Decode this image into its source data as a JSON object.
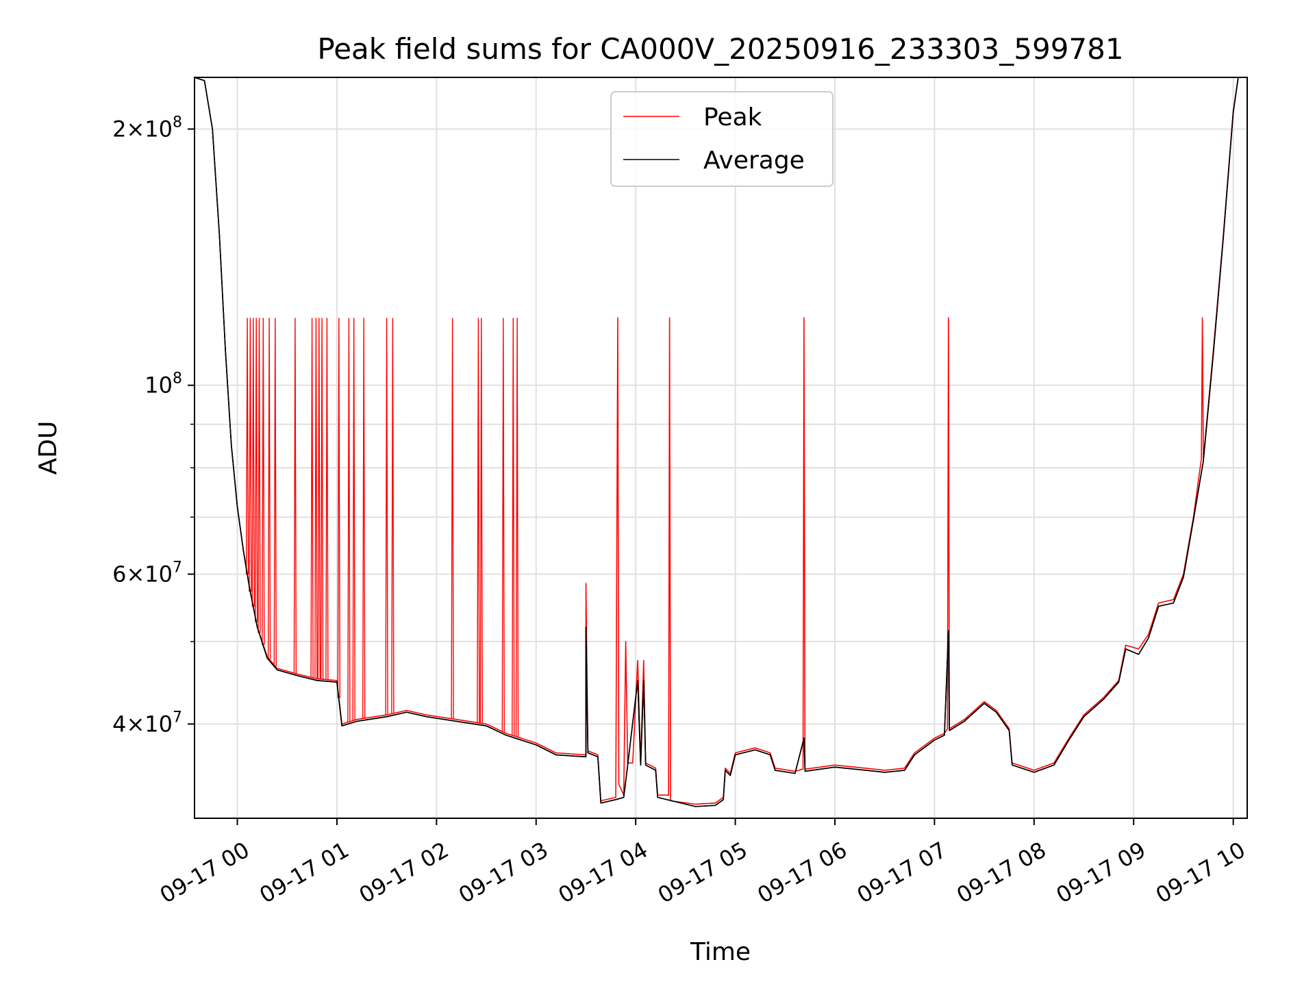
{
  "chart_data": {
    "type": "line",
    "title": "Peak field sums for CA000V_20250916_233303_599781",
    "xlabel": "Time",
    "ylabel": "ADU",
    "y_scale": "log",
    "ylim": [
      31000000,
      230000000
    ],
    "x_unit": "hours since 09-17 00:00",
    "xlim": [
      -0.43,
      10.14
    ],
    "grid": true,
    "legend_position": "upper center",
    "x_ticks": [
      {
        "value": 0,
        "label": "09-17 00"
      },
      {
        "value": 1,
        "label": "09-17 01"
      },
      {
        "value": 2,
        "label": "09-17 02"
      },
      {
        "value": 3,
        "label": "09-17 03"
      },
      {
        "value": 4,
        "label": "09-17 04"
      },
      {
        "value": 5,
        "label": "09-17 05"
      },
      {
        "value": 6,
        "label": "09-17 06"
      },
      {
        "value": 7,
        "label": "09-17 07"
      },
      {
        "value": 8,
        "label": "09-17 08"
      },
      {
        "value": 9,
        "label": "09-17 09"
      },
      {
        "value": 10,
        "label": "09-17 10"
      }
    ],
    "y_major_ticks": [
      {
        "value": 40000000,
        "base": "4",
        "sup": "7"
      },
      {
        "value": 60000000,
        "base": "6",
        "sup": "7"
      },
      {
        "value": 100000000,
        "base": "10",
        "sup": "8"
      },
      {
        "value": 200000000,
        "base": "2",
        "sup": "8"
      }
    ],
    "y_minor_ticks": [
      50000000,
      70000000,
      80000000,
      90000000
    ],
    "series": [
      {
        "name": "Peak",
        "color": "#ff0000",
        "points": [
          [
            -0.43,
            230000000
          ],
          [
            -0.33,
            228000000
          ],
          [
            -0.25,
            200000000
          ],
          [
            -0.18,
            150000000
          ],
          [
            -0.12,
            110000000
          ],
          [
            -0.06,
            85000000
          ],
          [
            0.0,
            72000000
          ],
          [
            0.06,
            64000000
          ],
          [
            0.12,
            58000000
          ],
          [
            0.2,
            52000000
          ],
          [
            0.3,
            48000000
          ],
          [
            0.4,
            46500000
          ],
          [
            0.6,
            45800000
          ],
          [
            0.8,
            45200000
          ],
          [
            1.0,
            45000000
          ],
          [
            1.05,
            40000000
          ],
          [
            1.2,
            40500000
          ],
          [
            1.5,
            41000000
          ],
          [
            1.7,
            41500000
          ],
          [
            1.9,
            41000000
          ],
          [
            2.2,
            40500000
          ],
          [
            2.5,
            40000000
          ],
          [
            2.7,
            39000000
          ],
          [
            3.0,
            38000000
          ],
          [
            3.2,
            37000000
          ],
          [
            3.5,
            36800000
          ],
          [
            3.5,
            58500000
          ],
          [
            3.52,
            37200000
          ],
          [
            3.62,
            36800000
          ],
          [
            3.65,
            32500000
          ],
          [
            3.8,
            32800000
          ],
          [
            3.82,
            120000000
          ],
          [
            3.83,
            34000000
          ],
          [
            3.88,
            33000000
          ],
          [
            3.9,
            50000000
          ],
          [
            3.92,
            36000000
          ],
          [
            3.97,
            36000000
          ],
          [
            4.02,
            47500000
          ],
          [
            4.05,
            36000000
          ],
          [
            4.08,
            47500000
          ],
          [
            4.1,
            36000000
          ],
          [
            4.2,
            35500000
          ],
          [
            4.22,
            33000000
          ],
          [
            4.33,
            33000000
          ],
          [
            4.34,
            120000000
          ],
          [
            4.35,
            32500000
          ],
          [
            4.6,
            32200000
          ],
          [
            4.8,
            32300000
          ],
          [
            4.88,
            32800000
          ],
          [
            4.9,
            35500000
          ],
          [
            4.95,
            35000000
          ],
          [
            5.0,
            37000000
          ],
          [
            5.2,
            37500000
          ],
          [
            5.35,
            37000000
          ],
          [
            5.4,
            35500000
          ],
          [
            5.6,
            35200000
          ],
          [
            5.68,
            35400000
          ],
          [
            5.69,
            120000000
          ],
          [
            5.7,
            35400000
          ],
          [
            6.0,
            35800000
          ],
          [
            6.2,
            35600000
          ],
          [
            6.5,
            35300000
          ],
          [
            6.7,
            35500000
          ],
          [
            6.8,
            37000000
          ],
          [
            7.0,
            38500000
          ],
          [
            7.1,
            39000000
          ],
          [
            7.13,
            39500000
          ],
          [
            7.14,
            120000000
          ],
          [
            7.15,
            39500000
          ],
          [
            7.3,
            40500000
          ],
          [
            7.5,
            42500000
          ],
          [
            7.62,
            41500000
          ],
          [
            7.75,
            39500000
          ],
          [
            7.78,
            36000000
          ],
          [
            8.0,
            35300000
          ],
          [
            8.2,
            36000000
          ],
          [
            8.35,
            38500000
          ],
          [
            8.5,
            41000000
          ],
          [
            8.7,
            43000000
          ],
          [
            8.85,
            45000000
          ],
          [
            8.92,
            49500000
          ],
          [
            9.05,
            49000000
          ],
          [
            9.15,
            51000000
          ],
          [
            9.25,
            55500000
          ],
          [
            9.4,
            56000000
          ],
          [
            9.5,
            60000000
          ],
          [
            9.6,
            70000000
          ],
          [
            9.68,
            82000000
          ],
          [
            9.69,
            120000000
          ],
          [
            9.7,
            82000000
          ],
          [
            9.8,
            110000000
          ],
          [
            9.9,
            150000000
          ],
          [
            10.0,
            210000000
          ],
          [
            10.05,
            230000000
          ],
          [
            10.14,
            230000000
          ]
        ]
      },
      {
        "name": "Average",
        "color": "#000000",
        "points": [
          [
            -0.43,
            230000000
          ],
          [
            -0.33,
            228000000
          ],
          [
            -0.25,
            200000000
          ],
          [
            -0.18,
            150000000
          ],
          [
            -0.12,
            110000000
          ],
          [
            -0.06,
            85000000
          ],
          [
            0.0,
            72000000
          ],
          [
            0.06,
            64000000
          ],
          [
            0.12,
            58000000
          ],
          [
            0.2,
            52000000
          ],
          [
            0.3,
            47800000
          ],
          [
            0.4,
            46300000
          ],
          [
            0.6,
            45600000
          ],
          [
            0.8,
            45000000
          ],
          [
            1.0,
            44800000
          ],
          [
            1.05,
            39800000
          ],
          [
            1.2,
            40300000
          ],
          [
            1.5,
            40800000
          ],
          [
            1.7,
            41300000
          ],
          [
            1.9,
            40800000
          ],
          [
            2.2,
            40300000
          ],
          [
            2.5,
            39800000
          ],
          [
            2.7,
            38800000
          ],
          [
            3.0,
            37800000
          ],
          [
            3.2,
            36800000
          ],
          [
            3.5,
            36600000
          ],
          [
            3.5,
            52000000
          ],
          [
            3.52,
            37000000
          ],
          [
            3.62,
            36600000
          ],
          [
            3.65,
            32300000
          ],
          [
            3.8,
            32600000
          ],
          [
            3.88,
            32800000
          ],
          [
            3.92,
            35800000
          ],
          [
            4.02,
            45000000
          ],
          [
            4.05,
            35800000
          ],
          [
            4.08,
            45000000
          ],
          [
            4.1,
            35800000
          ],
          [
            4.2,
            35300000
          ],
          [
            4.22,
            32800000
          ],
          [
            4.6,
            32000000
          ],
          [
            4.8,
            32100000
          ],
          [
            4.88,
            32600000
          ],
          [
            4.9,
            35300000
          ],
          [
            4.95,
            34800000
          ],
          [
            5.0,
            36800000
          ],
          [
            5.2,
            37300000
          ],
          [
            5.35,
            36800000
          ],
          [
            5.4,
            35300000
          ],
          [
            5.6,
            35000000
          ],
          [
            5.69,
            38500000
          ],
          [
            5.7,
            35200000
          ],
          [
            6.0,
            35600000
          ],
          [
            6.2,
            35400000
          ],
          [
            6.5,
            35100000
          ],
          [
            6.7,
            35300000
          ],
          [
            6.8,
            36800000
          ],
          [
            7.0,
            38300000
          ],
          [
            7.1,
            38800000
          ],
          [
            7.14,
            51500000
          ],
          [
            7.15,
            39300000
          ],
          [
            7.3,
            40300000
          ],
          [
            7.5,
            42300000
          ],
          [
            7.62,
            41300000
          ],
          [
            7.75,
            39300000
          ],
          [
            7.78,
            35800000
          ],
          [
            8.0,
            35100000
          ],
          [
            8.2,
            35800000
          ],
          [
            8.35,
            38300000
          ],
          [
            8.5,
            40800000
          ],
          [
            8.7,
            42800000
          ],
          [
            8.85,
            44800000
          ],
          [
            8.92,
            49000000
          ],
          [
            9.05,
            48300000
          ],
          [
            9.15,
            50500000
          ],
          [
            9.25,
            55000000
          ],
          [
            9.4,
            55500000
          ],
          [
            9.5,
            59500000
          ],
          [
            9.6,
            69500000
          ],
          [
            9.7,
            81500000
          ],
          [
            9.8,
            109000000
          ],
          [
            9.9,
            149000000
          ],
          [
            10.0,
            209000000
          ],
          [
            10.05,
            230000000
          ],
          [
            10.14,
            230000000
          ]
        ]
      }
    ],
    "peak_spikes": {
      "value": 120000000,
      "baseline_series": "Peak",
      "x": [
        0.1,
        0.13,
        0.16,
        0.19,
        0.22,
        0.26,
        0.32,
        0.38,
        0.58,
        0.75,
        0.79,
        0.82,
        0.85,
        0.9,
        1.02,
        1.12,
        1.17,
        1.27,
        1.5,
        1.56,
        2.16,
        2.42,
        2.45,
        2.67,
        2.77,
        2.81
      ]
    }
  }
}
